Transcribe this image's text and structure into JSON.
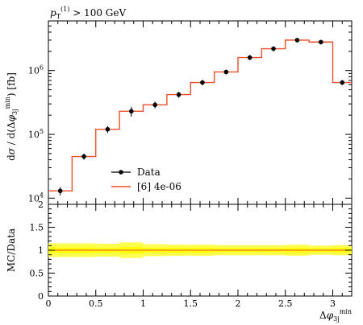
{
  "page_label": {
    "text": "p_T^(1) > 100 GeV"
  },
  "legend": {
    "data_label": "Data",
    "mc_label": "[6] 4e-06"
  },
  "colors": {
    "mc_line": "#ee4e2b",
    "band_inner": "#ffff00",
    "band_outer": "#ffff4d",
    "data": "#000000"
  },
  "chart_data": [
    {
      "type": "line",
      "title": "",
      "xlabel": "Δφ_3j^min",
      "ylabel": "dσ/d(Δφ_3j^min) [fb]",
      "yscale": "log",
      "xlim": [
        0,
        3.2
      ],
      "ylim": [
        8000,
        6000000
      ],
      "ytick_labels": [
        "10^4",
        "10^5",
        "10^6"
      ],
      "bin_edges": [
        0,
        0.25,
        0.5,
        0.75,
        1.0,
        1.25,
        1.5,
        1.75,
        2.0,
        2.25,
        2.5,
        2.75,
        3.0,
        3.2
      ],
      "series": [
        {
          "name": "Data",
          "x": [
            0.125,
            0.375,
            0.625,
            0.875,
            1.125,
            1.375,
            1.625,
            1.875,
            2.125,
            2.375,
            2.625,
            2.875,
            3.1
          ],
          "values": [
            13000,
            45000,
            120000,
            230000,
            290000,
            420000,
            650000,
            950000,
            1600000,
            2200000,
            3000000,
            2800000,
            650000
          ],
          "errors": [
            2000,
            5000,
            15000,
            40000,
            35000,
            45000,
            60000,
            80000,
            150000,
            200000,
            250000,
            230000,
            60000
          ]
        },
        {
          "name": "[6] 4e-06",
          "values": [
            13000,
            45000,
            120000,
            230000,
            290000,
            420000,
            650000,
            950000,
            1600000,
            2200000,
            3000000,
            2800000,
            650000
          ]
        }
      ],
      "legend_position": "center-left"
    },
    {
      "type": "area",
      "ylabel": "MC/Data",
      "xlabel": "Δφ_3j^min",
      "xlim": [
        0,
        3.2
      ],
      "ylim": [
        0,
        2
      ],
      "yticks": [
        0,
        0.5,
        1,
        1.5,
        2
      ],
      "ytick_labels": [
        "0",
        "0.5",
        "1",
        "1.5",
        "2"
      ],
      "xticks": [
        0,
        0.5,
        1,
        1.5,
        2,
        2.5,
        3
      ],
      "xtick_labels": [
        "0",
        "0.5",
        "1",
        "1.5",
        "2",
        "2.5",
        "3"
      ],
      "ratio": 1.0,
      "band_outer": [
        0.15,
        0.15,
        0.14,
        0.17,
        0.13,
        0.12,
        0.12,
        0.11,
        0.11,
        0.11,
        0.12,
        0.1,
        0.11
      ],
      "band_inner": [
        0.06,
        0.06,
        0.05,
        0.07,
        0.05,
        0.05,
        0.05,
        0.04,
        0.04,
        0.04,
        0.05,
        0.04,
        0.05
      ]
    }
  ]
}
